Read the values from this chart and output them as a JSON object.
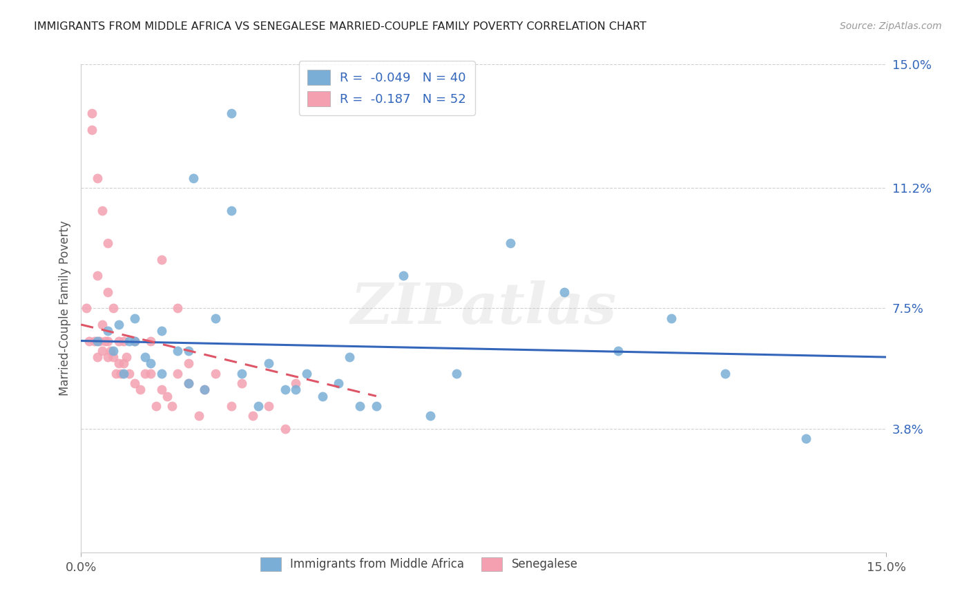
{
  "title": "IMMIGRANTS FROM MIDDLE AFRICA VS SENEGALESE MARRIED-COUPLE FAMILY POVERTY CORRELATION CHART",
  "source": "Source: ZipAtlas.com",
  "ylabel": "Married-Couple Family Poverty",
  "xlim": [
    0,
    15
  ],
  "ylim": [
    0,
    15
  ],
  "xtick_labels": [
    "0.0%",
    "15.0%"
  ],
  "ytick_labels": [
    "3.8%",
    "7.5%",
    "11.2%",
    "15.0%"
  ],
  "ytick_vals": [
    3.8,
    7.5,
    11.2,
    15.0
  ],
  "grid_color": "#d0d0d0",
  "background_color": "#ffffff",
  "blue_color": "#7aaed6",
  "pink_color": "#f4a0b0",
  "blue_line_color": "#3366bb",
  "pink_line_color": "#dd5566",
  "legend_R_blue": "-0.049",
  "legend_N_blue": "40",
  "legend_R_pink": "-0.187",
  "legend_N_pink": "52",
  "watermark_text": "ZIPatlas",
  "blue_scatter_x": [
    0.3,
    0.5,
    0.6,
    0.7,
    0.8,
    0.9,
    1.0,
    1.0,
    1.2,
    1.3,
    1.5,
    1.5,
    1.8,
    2.0,
    2.0,
    2.1,
    2.3,
    2.5,
    2.8,
    3.0,
    3.3,
    3.5,
    3.8,
    4.0,
    4.2,
    4.5,
    4.8,
    5.0,
    5.2,
    5.5,
    6.0,
    6.5,
    7.0,
    8.0,
    9.0,
    10.0,
    11.0,
    12.0,
    13.5,
    2.8
  ],
  "blue_scatter_y": [
    6.5,
    6.8,
    6.2,
    7.0,
    5.5,
    6.5,
    6.5,
    7.2,
    6.0,
    5.8,
    6.8,
    5.5,
    6.2,
    6.2,
    5.2,
    11.5,
    5.0,
    7.2,
    13.5,
    5.5,
    4.5,
    5.8,
    5.0,
    5.0,
    5.5,
    4.8,
    5.2,
    6.0,
    4.5,
    4.5,
    8.5,
    4.2,
    5.5,
    9.5,
    8.0,
    6.2,
    7.2,
    5.5,
    3.5,
    10.5
  ],
  "pink_scatter_x": [
    0.1,
    0.15,
    0.2,
    0.2,
    0.25,
    0.3,
    0.3,
    0.3,
    0.35,
    0.4,
    0.4,
    0.4,
    0.45,
    0.5,
    0.5,
    0.5,
    0.5,
    0.55,
    0.6,
    0.6,
    0.65,
    0.7,
    0.7,
    0.75,
    0.8,
    0.8,
    0.85,
    0.9,
    1.0,
    1.0,
    1.1,
    1.2,
    1.3,
    1.3,
    1.4,
    1.5,
    1.6,
    1.7,
    1.8,
    1.8,
    2.0,
    2.0,
    2.2,
    2.3,
    2.5,
    2.8,
    3.0,
    3.2,
    3.5,
    3.8,
    4.0,
    1.5
  ],
  "pink_scatter_y": [
    7.5,
    6.5,
    13.5,
    13.0,
    6.5,
    11.5,
    8.5,
    6.0,
    6.5,
    10.5,
    7.0,
    6.2,
    6.5,
    9.5,
    8.0,
    6.5,
    6.0,
    6.2,
    7.5,
    6.0,
    5.5,
    6.5,
    5.8,
    5.5,
    6.5,
    5.8,
    6.0,
    5.5,
    6.5,
    5.2,
    5.0,
    5.5,
    5.5,
    6.5,
    4.5,
    5.0,
    4.8,
    4.5,
    5.5,
    7.5,
    5.2,
    5.8,
    4.2,
    5.0,
    5.5,
    4.5,
    5.2,
    4.2,
    4.5,
    3.8,
    5.2,
    9.0
  ],
  "blue_trend_x": [
    0,
    15
  ],
  "blue_trend_y": [
    6.5,
    6.0
  ],
  "pink_trend_x": [
    0,
    5.5
  ],
  "pink_trend_y": [
    7.0,
    4.8
  ]
}
